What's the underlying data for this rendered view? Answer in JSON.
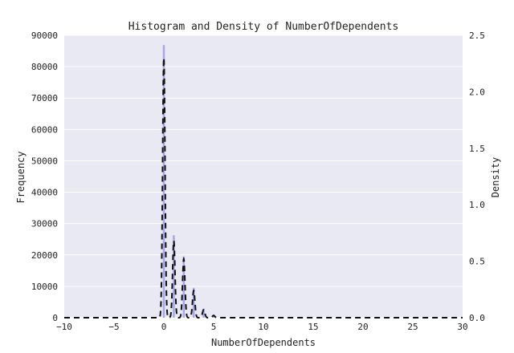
{
  "chart_data": {
    "type": "histogram",
    "title": "Histogram and Density of NumberOfDependents",
    "xlabel": "NumberOfDependents",
    "ylabel_left": "Frequency",
    "ylabel_right": "Density",
    "xlim": [
      -10,
      30
    ],
    "ylim_left": [
      0,
      90000
    ],
    "ylim_right": [
      0,
      2.5
    ],
    "x_ticks": [
      -10,
      -5,
      0,
      5,
      10,
      15,
      20,
      25,
      30
    ],
    "y_ticks_left": [
      0,
      10000,
      20000,
      30000,
      40000,
      50000,
      60000,
      70000,
      80000,
      90000
    ],
    "y_ticks_right": [
      0.0,
      0.5,
      1.0,
      1.5,
      2.0,
      2.5
    ],
    "x_tick_labels": [
      "−10",
      "−5",
      "0",
      "5",
      "10",
      "15",
      "20",
      "25",
      "30"
    ],
    "y_tick_labels_left": [
      "0",
      "10000",
      "20000",
      "30000",
      "40000",
      "50000",
      "60000",
      "70000",
      "80000",
      "90000"
    ],
    "y_tick_labels_right": [
      "0.0",
      "0.5",
      "1.0",
      "1.5",
      "2.0",
      "2.5"
    ],
    "grid": true,
    "histogram": {
      "color": "#9b9be8",
      "bin_width": 0.2,
      "bins": [
        {
          "x": 0,
          "count": 86900
        },
        {
          "x": 1,
          "count": 26300
        },
        {
          "x": 2,
          "count": 19500
        },
        {
          "x": 3,
          "count": 9500
        },
        {
          "x": 4,
          "count": 2900
        },
        {
          "x": 5,
          "count": 750
        },
        {
          "x": 6,
          "count": 160
        },
        {
          "x": 7,
          "count": 50
        },
        {
          "x": 8,
          "count": 20
        }
      ]
    },
    "density": {
      "color": "#111111",
      "style": "dashed",
      "peaks": [
        {
          "x": 0,
          "density": 2.3
        },
        {
          "x": 1,
          "density": 0.68
        },
        {
          "x": 2,
          "density": 0.52
        },
        {
          "x": 3,
          "density": 0.24
        },
        {
          "x": 4,
          "density": 0.07
        },
        {
          "x": 5,
          "density": 0.02
        }
      ],
      "peak_width": 0.12
    },
    "style": {
      "plot_background": "#e9e9f3",
      "grid_color": "#ffffff"
    }
  }
}
